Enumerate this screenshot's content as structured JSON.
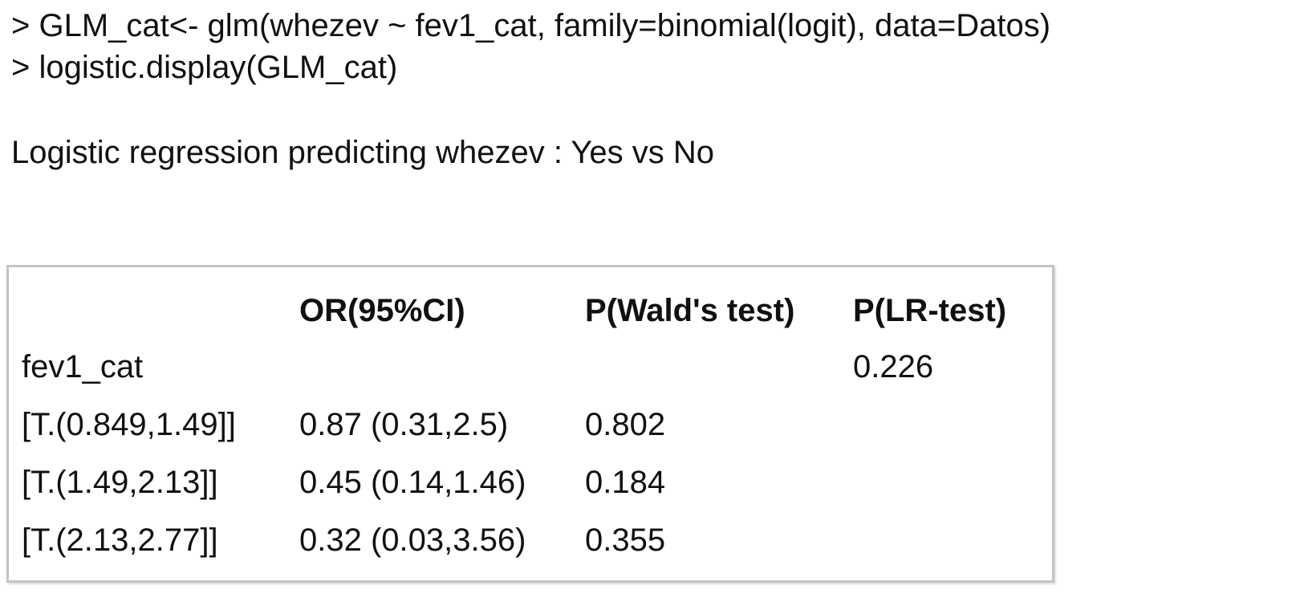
{
  "console": {
    "lines": [
      "> GLM_cat<- glm(whezev ~ fev1_cat, family=binomial(logit), data=Datos)",
      "> logistic.display(GLM_cat)"
    ],
    "heading": "Logistic regression predicting whezev : Yes vs No"
  },
  "table": {
    "columns": [
      "OR(95%CI)",
      "P(Wald's test)",
      "P(LR-test)"
    ],
    "rows": [
      {
        "label": "fev1_cat",
        "lr": "0.226"
      },
      {
        "label": "[T.(0.849,1.49]]",
        "or": "0.87 (0.31,2.5)",
        "wald": "0.802"
      },
      {
        "label": "[T.(1.49,2.13]]",
        "or": "0.45 (0.14,1.46)",
        "wald": "0.184"
      },
      {
        "label": "[T.(2.13,2.77]]",
        "or": "0.32 (0.03,3.56)",
        "wald": "0.355"
      }
    ]
  }
}
